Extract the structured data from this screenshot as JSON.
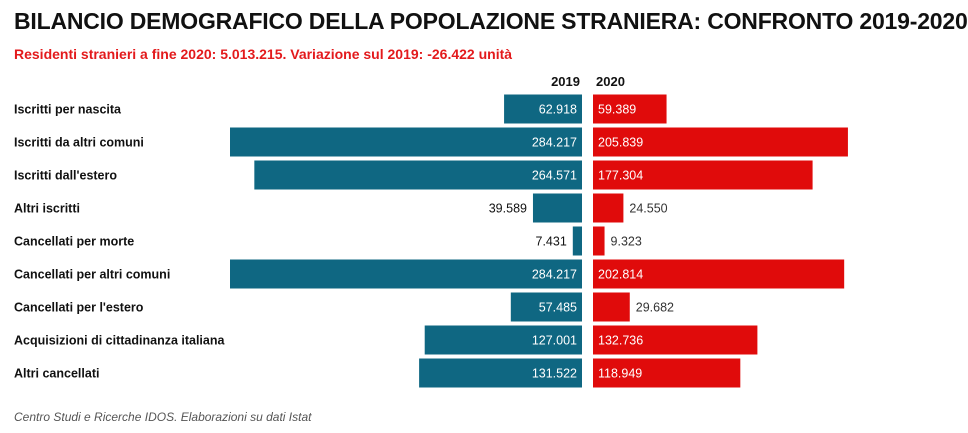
{
  "title": "BILANCIO DEMOGRAFICO DELLA POPOLAZIONE STRANIERA: CONFRONTO 2019-2020",
  "subtitle": "Residenti stranieri a fine 2020: 5.013.215. Variazione sul 2019: -26.422 unità",
  "footer": "Centro Studi e Ricerche IDOS. Elaborazioni su dati Istat",
  "colors": {
    "series_2019": "#0f6782",
    "series_2020": "#e00b0b"
  },
  "chart_data": {
    "type": "bar",
    "orientation": "horizontal-butterfly",
    "categories": [
      "Iscritti per nascita",
      "Iscritti da altri comuni",
      "Iscritti dall'estero",
      "Altri iscritti",
      "Cancellati per morte",
      "Cancellati per altri comuni",
      "Cancellati per l'estero",
      "Acquisizioni di cittadinanza italiana",
      "Altri cancellati"
    ],
    "series": [
      {
        "name": "2019",
        "values": [
          62918,
          284217,
          264571,
          39589,
          7431,
          284217,
          57485,
          127001,
          131522
        ],
        "labels": [
          "62.918",
          "284.217",
          "264.571",
          "39.589",
          "7.431",
          "284.217",
          "57.485",
          "127.001",
          "131.522"
        ]
      },
      {
        "name": "2020",
        "values": [
          59389,
          205839,
          177304,
          24550,
          9323,
          202814,
          29682,
          132736,
          118949
        ],
        "labels": [
          "59.389",
          "205.839",
          "177.304",
          "24.550",
          "9.323",
          "202.814",
          "29.682",
          "132.736",
          "118.949"
        ]
      }
    ],
    "xlim": [
      0,
      284217
    ],
    "legend": "top-center",
    "grid": false
  }
}
